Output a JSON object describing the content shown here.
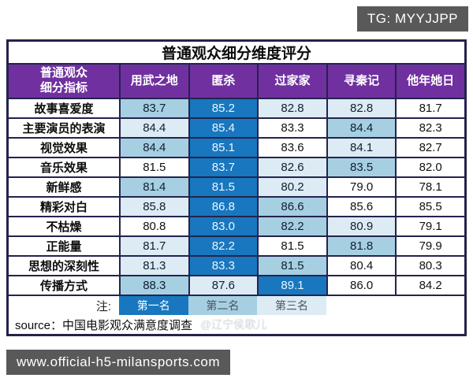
{
  "colors": {
    "rank1": "#1877be",
    "rank2": "#a6cfe2",
    "rank3": "#dcebf4",
    "header_purple": "#7030a0",
    "grid_line": "#23234d",
    "badge_bg": "#595959"
  },
  "overlays": {
    "telegram_badge": "TG: MYYJJPP",
    "website_badge": "www.official-h5-milansports.com"
  },
  "table": {
    "title": "普通观众细分维度评分",
    "indicator_header_line1": "普通观众",
    "indicator_header_line2": "细分指标",
    "note_label": "注:",
    "legend": [
      {
        "label": "第一名",
        "rank": 1
      },
      {
        "label": "第二名",
        "rank": 2
      },
      {
        "label": "第三名",
        "rank": 3
      }
    ],
    "source": "source：中国电影观众满意度调查",
    "watermark": "@辽宁侯歌儿"
  },
  "chart_data": {
    "type": "table",
    "title": "普通观众细分维度评分",
    "row_header": "普通观众细分指标",
    "columns": [
      "用武之地",
      "匿杀",
      "过家家",
      "寻秦记",
      "他年她日"
    ],
    "rows": [
      "故事喜爱度",
      "主要演员的表演",
      "视觉效果",
      "音乐效果",
      "新鲜感",
      "精彩对白",
      "不枯燥",
      "正能量",
      "思想的深刻性",
      "传播方式"
    ],
    "values": [
      [
        83.7,
        85.2,
        82.8,
        82.8,
        81.7
      ],
      [
        84.4,
        85.4,
        83.3,
        84.4,
        82.3
      ],
      [
        84.4,
        85.1,
        83.6,
        84.1,
        82.7
      ],
      [
        81.5,
        83.7,
        82.6,
        83.5,
        82.0
      ],
      [
        81.4,
        81.5,
        80.2,
        79.0,
        78.1
      ],
      [
        85.8,
        86.8,
        86.6,
        85.6,
        85.5
      ],
      [
        80.8,
        83.0,
        82.2,
        80.9,
        79.1
      ],
      [
        81.7,
        82.2,
        81.5,
        81.8,
        79.9
      ],
      [
        81.3,
        83.3,
        81.5,
        80.4,
        80.3
      ],
      [
        88.3,
        87.6,
        89.1,
        86.0,
        84.2
      ]
    ],
    "highlight_ranks": [
      [
        2,
        1,
        3,
        3,
        0
      ],
      [
        3,
        1,
        0,
        2,
        0
      ],
      [
        2,
        1,
        0,
        3,
        0
      ],
      [
        0,
        1,
        3,
        2,
        0
      ],
      [
        2,
        1,
        3,
        0,
        0
      ],
      [
        3,
        1,
        2,
        0,
        0
      ],
      [
        0,
        1,
        2,
        3,
        0
      ],
      [
        3,
        1,
        0,
        2,
        0
      ],
      [
        3,
        1,
        2,
        0,
        0
      ],
      [
        2,
        3,
        1,
        0,
        0
      ]
    ],
    "legend": [
      "第一名",
      "第二名",
      "第三名"
    ],
    "legend_meaning": "rank 1 = 第一名 (dark blue), rank 2 = 第二名 (medium blue), rank 3 = 第三名 (light blue), 0 = no highlight"
  }
}
